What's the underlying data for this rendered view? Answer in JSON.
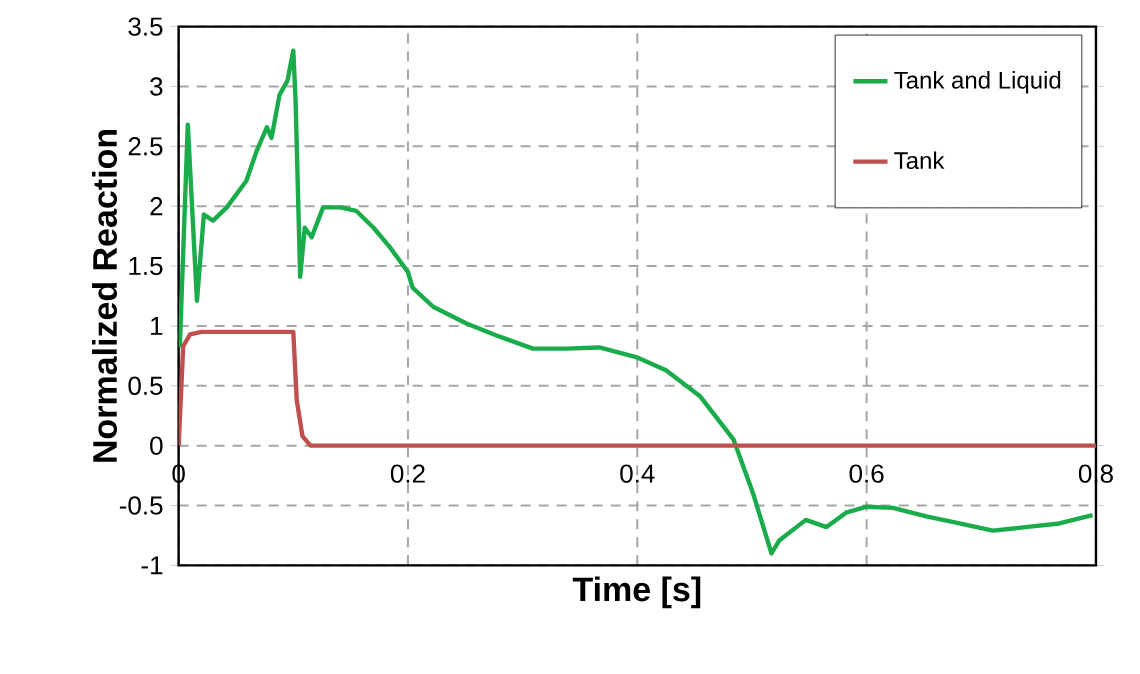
{
  "chart_data": {
    "type": "line",
    "xlabel": "Time [s]",
    "ylabel": "Normalized Reaction",
    "xlim": [
      0,
      0.8
    ],
    "ylim": [
      -1,
      3.5
    ],
    "xticks": [
      0,
      0.2,
      0.4,
      0.6,
      0.8
    ],
    "yticks": [
      -1,
      -0.5,
      0,
      0.5,
      1,
      1.5,
      2,
      2.5,
      3,
      3.5
    ],
    "grid": true,
    "legend": "top right",
    "line_style": "solid",
    "marker": "none",
    "series": [
      {
        "name": "Tank and Liquid",
        "color": "#1aac4a",
        "x": [
          0.001,
          0.008,
          0.016,
          0.022,
          0.03,
          0.042,
          0.059,
          0.068,
          0.077,
          0.081,
          0.088,
          0.095,
          0.1,
          0.102,
          0.106,
          0.11,
          0.116,
          0.126,
          0.141,
          0.155,
          0.17,
          0.184,
          0.2,
          0.204,
          0.222,
          0.251,
          0.28,
          0.309,
          0.338,
          0.367,
          0.399,
          0.425,
          0.455,
          0.484,
          0.501,
          0.517,
          0.524,
          0.547,
          0.565,
          0.582,
          0.6,
          0.623,
          0.652,
          0.681,
          0.71,
          0.739,
          0.768,
          0.797
        ],
        "values": [
          0.82,
          2.68,
          1.21,
          1.93,
          1.88,
          1.99,
          2.21,
          2.46,
          2.66,
          2.57,
          2.93,
          3.05,
          3.3,
          2.88,
          1.41,
          1.82,
          1.74,
          1.99,
          1.99,
          1.96,
          1.82,
          1.66,
          1.45,
          1.32,
          1.16,
          1.02,
          0.91,
          0.81,
          0.81,
          0.82,
          0.74,
          0.63,
          0.41,
          0.05,
          -0.4,
          -0.9,
          -0.79,
          -0.62,
          -0.68,
          -0.56,
          -0.51,
          -0.52,
          -0.59,
          -0.65,
          -0.71,
          -0.68,
          -0.65,
          -0.58
        ]
      },
      {
        "name": "Tank",
        "color": "#c0504d",
        "x": [
          0,
          0.004,
          0.01,
          0.02,
          0.05,
          0.08,
          0.1,
          0.103,
          0.108,
          0.115,
          0.2,
          0.4,
          0.6,
          0.8
        ],
        "values": [
          0,
          0.83,
          0.93,
          0.95,
          0.95,
          0.95,
          0.95,
          0.38,
          0.08,
          0.0,
          0.0,
          0.0,
          0.0,
          0.0
        ]
      }
    ]
  }
}
